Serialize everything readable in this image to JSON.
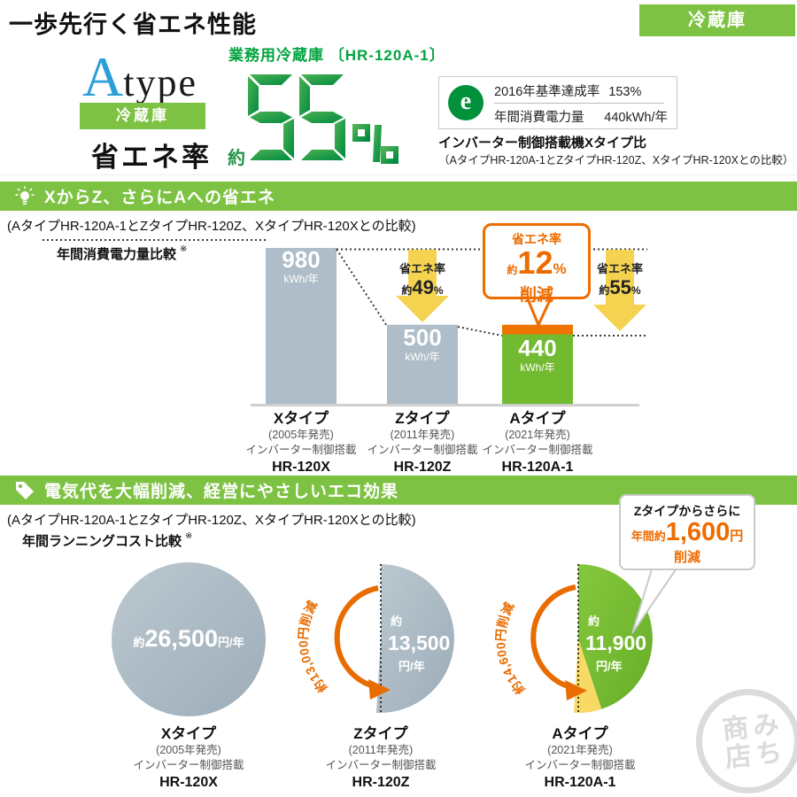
{
  "header": {
    "title": "一歩先行く省エネ性能",
    "badge": "冷蔵庫"
  },
  "hero": {
    "logo_a": "A",
    "logo_type": "type",
    "logo_badge": "冷蔵庫",
    "logo_caption": "省エネ率",
    "product_prefix": "業務用冷蔵庫",
    "product_model": "〔HR-120A-1〕",
    "rate_prefix": "約",
    "rate_value": "55",
    "rate_unit": "%",
    "spec_box": {
      "emark": "e",
      "rows": [
        {
          "label": "2016年基準達成率",
          "value": "153%"
        },
        {
          "label": "年間消費電力量",
          "value": "440kWh/年"
        }
      ]
    },
    "note_bold": "インバーター制御搭載機Xタイプ比",
    "note": "（AタイプHR-120A-1とZタイプHR-120Z、XタイプHR-120Xとの比較）"
  },
  "section1": {
    "banner": "XからZ、さらにAへの省エネ",
    "note": "(AタイプHR-120A-1とZタイプHR-120Z、XタイプHR-120Xとの比較)",
    "chart_label": "年間消費電力量比較",
    "note_mark": "※",
    "arrow1": {
      "label": "省エネ率",
      "prefix": "約",
      "value": "49",
      "unit": "%"
    },
    "arrow2": {
      "label": "省エネ率",
      "prefix": "約",
      "value": "55",
      "unit": "%"
    },
    "callout": {
      "title": "省エネ率",
      "prefix": "約",
      "value": "12",
      "unit": "%",
      "suffix": "削減"
    }
  },
  "models": [
    {
      "name": "Xタイプ",
      "year": "(2005年発売)",
      "feature": "インバーター制御搭載",
      "model": "HR-120X"
    },
    {
      "name": "Zタイプ",
      "year": "(2011年発売)",
      "feature": "インバーター制御搭載",
      "model": "HR-120Z"
    },
    {
      "name": "Aタイプ",
      "year": "(2021年発売)",
      "feature": "インバーター制御搭載",
      "model": "HR-120A-1"
    }
  ],
  "section2": {
    "banner": "電気代を大幅削減、経営にやさしいエコ効果",
    "note": "(AタイプHR-120A-1とZタイプHR-120Z、XタイプHR-120Xとの比較)",
    "chart_label": "年間ランニングコスト比較",
    "note_mark": "※",
    "circleX": {
      "prefix": "約",
      "value": "26,500",
      "unit": "円/年"
    },
    "circleZ": {
      "prefix": "約",
      "value": "13,500",
      "unit": "円/年",
      "arc_label": "約13,000円削減"
    },
    "circleA": {
      "prefix": "約",
      "value": "11,900",
      "unit": "円/年",
      "arc_label": "約14,600円削減"
    },
    "callout": {
      "title": "Zタイプからさらに",
      "prefix": "年間約",
      "value": "1,600",
      "unit": "円",
      "suffix": "削減"
    }
  },
  "stamp": {
    "line1": "みち",
    "line2": "商店"
  },
  "colors": {
    "brand_green": "#7dc242",
    "model_green": "#00a33e",
    "digit_green_light": "#4db253",
    "digit_green_dark": "#008a41",
    "bar_gray": "#aebdc7",
    "bar_green": "#72ba2f",
    "highlight_orange": "#ee7300",
    "callout_orange": "#ed6c00",
    "arrow_yellow": "#f5d351",
    "pie_yellow": "#f7d964"
  },
  "chart_data": [
    {
      "type": "bar",
      "title": "年間消費電力量比較",
      "categories": [
        "Xタイプ",
        "Zタイプ",
        "Aタイプ"
      ],
      "values": [
        980,
        500,
        440
      ],
      "unit": "kWh/年",
      "ylim": [
        0,
        980
      ],
      "bar_colors": [
        "#aebdc7",
        "#aebdc7",
        "#72ba2f"
      ],
      "highlight": {
        "bar": "Aタイプ",
        "cap_from": 500,
        "cap_to": 440,
        "cap_color": "#ee7300"
      },
      "annotations": [
        {
          "compare": "Xタイプ→Zタイプ",
          "label": "省エネ率 約49%"
        },
        {
          "compare": "Xタイプ→Aタイプ",
          "label": "省エネ率 約55%"
        },
        {
          "compare": "Zタイプ→Aタイプ",
          "label": "省エネ率 約12% 削減"
        }
      ],
      "legend": "none",
      "grid": "off"
    },
    {
      "type": "pie",
      "title": "年間ランニングコスト比較",
      "unit": "円/年",
      "base_value": 26500,
      "items": [
        {
          "name": "Xタイプ",
          "model": "HR-120X",
          "value": 26500
        },
        {
          "name": "Zタイプ",
          "model": "HR-120Z",
          "value": 13500,
          "saving_vs_x": 13000
        },
        {
          "name": "Aタイプ",
          "model": "HR-120A-1",
          "value": 11900,
          "saving_vs_x": 14600,
          "saving_vs_z": 1600
        }
      ],
      "annotations": [
        "約13,000円削減",
        "約14,600円削減",
        "Zタイプからさらに 年間約1,600円 削減"
      ]
    }
  ]
}
